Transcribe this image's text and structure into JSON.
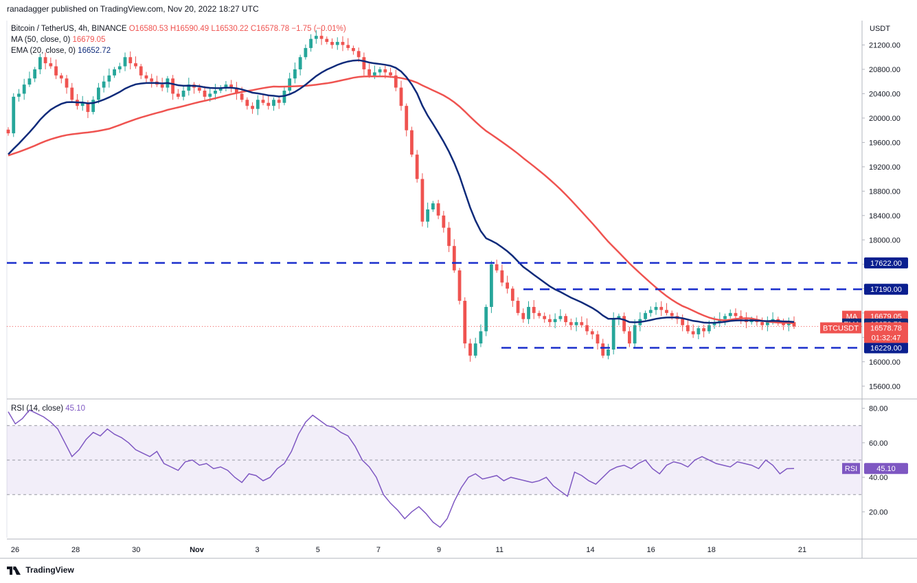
{
  "header": {
    "publisher": "ranadagger published on TradingView.com, Nov 20, 2022 18:27 UTC"
  },
  "legend": {
    "symbol": "Bitcoin / TetherUS, 4h, BINANCE",
    "open": "O16580.53",
    "high": "H16590.49",
    "low": "L16530.22",
    "close": "C16578.78",
    "change": "−1.75 (−0.01%)",
    "ma_label": "MA (50, close, 0)",
    "ma_value": "16679.05",
    "ema_label": "EMA (20, close, 0)",
    "ema_value": "16652.72"
  },
  "rsi_legend": {
    "label": "RSI (14, close)",
    "value": "45.10"
  },
  "footer": {
    "brand": "TradingView"
  },
  "colors": {
    "up": "#26a69a",
    "down": "#ef5350",
    "ma": "#ef5350",
    "ema": "#0d2a7a",
    "level": "#1a2ecc",
    "rsi": "#7e57c2"
  },
  "chart_data": [
    {
      "type": "candlestick",
      "currency": "USDT",
      "ylim": [
        15400,
        21600
      ],
      "y_ticks": [
        15600,
        16000,
        16400,
        16800,
        17200,
        17600,
        18000,
        18400,
        18800,
        19200,
        19600,
        20000,
        20400,
        20800,
        21200
      ],
      "x_ticks": [
        {
          "label": "26",
          "day": 0
        },
        {
          "label": "28",
          "day": 2
        },
        {
          "label": "30",
          "day": 4
        },
        {
          "label": "Nov",
          "day": 6
        },
        {
          "label": "3",
          "day": 8
        },
        {
          "label": "5",
          "day": 10
        },
        {
          "label": "7",
          "day": 12
        },
        {
          "label": "9",
          "day": 14
        },
        {
          "label": "11",
          "day": 16
        },
        {
          "label": "14",
          "day": 19
        },
        {
          "label": "16",
          "day": 21
        },
        {
          "label": "18",
          "day": 23
        },
        {
          "label": "21",
          "day": 26
        }
      ],
      "candles_close": [
        19750,
        20350,
        20400,
        20550,
        20650,
        20800,
        21000,
        20900,
        20850,
        20700,
        20650,
        20500,
        20300,
        20200,
        20250,
        20100,
        20300,
        20500,
        20600,
        20700,
        20800,
        20850,
        21000,
        20900,
        20850,
        20700,
        20650,
        20600,
        20550,
        20500,
        20650,
        20400,
        20350,
        20450,
        20550,
        20500,
        20450,
        20350,
        20400,
        20450,
        20500,
        20550,
        20500,
        20400,
        20300,
        20200,
        20150,
        20300,
        20250,
        20200,
        20300,
        20250,
        20450,
        20650,
        20800,
        21000,
        21150,
        21300,
        21350,
        21300,
        21250,
        21200,
        21250,
        21200,
        21150,
        21100,
        21000,
        20800,
        20700,
        20750,
        20800,
        20750,
        20700,
        20500,
        20200,
        19800,
        19400,
        19000,
        18300,
        18500,
        18600,
        18400,
        18200,
        17900,
        17500,
        17000,
        16300,
        16100,
        16300,
        16500,
        16900,
        17600,
        17500,
        17300,
        17200,
        17000,
        16800,
        16700,
        16900,
        16800,
        16750,
        16700,
        16650,
        16700,
        16750,
        16650,
        16600,
        16650,
        16600,
        16500,
        16450,
        16300,
        16100,
        16200,
        16700,
        16750,
        16500,
        16300,
        16600,
        16700,
        16800,
        16850,
        16900,
        16850,
        16800,
        16750,
        16700,
        16600,
        16500,
        16450,
        16550,
        16500,
        16600,
        16650,
        16700,
        16750,
        16800,
        16750,
        16700,
        16650,
        16700,
        16650,
        16600,
        16650,
        16700,
        16650,
        16600,
        16650,
        16579
      ],
      "ma50_value": 16679.05,
      "ema20_value": 16652.72,
      "last_price": 16578.78,
      "countdown": "01:32:47",
      "levels": [
        {
          "value": 17622,
          "label": "17622.00"
        },
        {
          "value": 17190,
          "label": "17190.00"
        },
        {
          "value": 16229,
          "label": "16229.00"
        }
      ],
      "badges": [
        {
          "text": "MA",
          "value": "16679.05"
        },
        {
          "text": "EMA",
          "value": "16652.72"
        },
        {
          "text": "BTCUSDT",
          "value": "16578.78"
        }
      ]
    },
    {
      "type": "line",
      "name": "RSI",
      "ylim": [
        5,
        85
      ],
      "y_ticks": [
        20,
        40,
        60,
        80
      ],
      "band": [
        30,
        70
      ],
      "mid": 50,
      "values": [
        78,
        71,
        74,
        79,
        77,
        75,
        72,
        68,
        60,
        52,
        56,
        62,
        66,
        64,
        68,
        65,
        63,
        60,
        56,
        54,
        52,
        55,
        48,
        46,
        44,
        49,
        50,
        47,
        48,
        45,
        46,
        44,
        40,
        37,
        42,
        41,
        38,
        40,
        45,
        48,
        55,
        65,
        72,
        76,
        73,
        70,
        69,
        66,
        64,
        58,
        50,
        46,
        40,
        30,
        25,
        21,
        16,
        20,
        23,
        19,
        14,
        11,
        16,
        26,
        34,
        40,
        42,
        39,
        40,
        41,
        38,
        40,
        39,
        38,
        37,
        38,
        40,
        35,
        32,
        29,
        43,
        41,
        38,
        36,
        40,
        44,
        46,
        47,
        45,
        48,
        50,
        45,
        42,
        47,
        49,
        48,
        46,
        50,
        52,
        50,
        48,
        47,
        46,
        49,
        48,
        47,
        45,
        50,
        47,
        42,
        45,
        45.1
      ],
      "last_value": "45.10"
    }
  ]
}
